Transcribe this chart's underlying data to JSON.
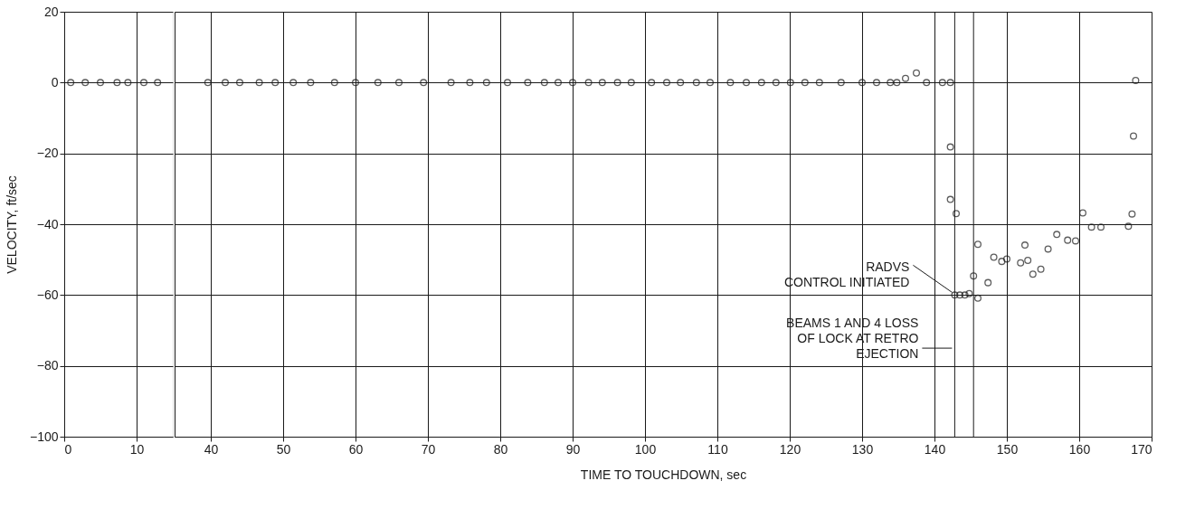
{
  "chart_data": [
    {
      "type": "scatter",
      "ylabel": "VELOCITY, ft/sec",
      "xlim": [
        0,
        15
      ],
      "xticks": [
        0,
        10
      ],
      "ylim": [
        -100,
        20
      ],
      "yticks": [
        -100,
        -80,
        -60,
        -40,
        -20,
        0,
        20
      ],
      "grid": true,
      "marker": "circle",
      "color": "#1a1a1a",
      "x": [
        0.9,
        2.9,
        5.0,
        7.3,
        8.8,
        11.0,
        12.9
      ],
      "values": [
        0,
        0,
        0,
        0,
        0,
        0,
        0
      ]
    },
    {
      "type": "scatter",
      "xlabel": "TIME TO TOUCHDOWN, sec",
      "xlim": [
        35,
        170
      ],
      "xticks": [
        40,
        50,
        60,
        70,
        80,
        90,
        100,
        110,
        120,
        130,
        140,
        150,
        160,
        170
      ],
      "ylim": [
        -100,
        20
      ],
      "yticks": [
        -100,
        -80,
        -60,
        -40,
        -20,
        0,
        20
      ],
      "tick_labels": "x",
      "grid": true,
      "marker": "circle",
      "color": "#1a1a1a",
      "x": [
        39.6,
        42,
        44,
        46.7,
        48.9,
        51.4,
        53.8,
        57.1,
        60,
        63.1,
        66,
        69.4,
        73.2,
        75.8,
        78.1,
        81,
        83.8,
        86.1,
        88,
        90,
        92.2,
        94.1,
        96.2,
        98.1,
        100.9,
        103,
        104.9,
        107.1,
        109,
        111.8,
        114,
        116.1,
        118.1,
        120.1,
        122.1,
        124.1,
        127.1,
        130,
        132,
        133.9,
        134.8,
        136,
        137.5,
        138.9,
        141.1,
        142.2,
        142.2,
        142.2,
        143.0,
        142.8,
        143.5,
        144.2,
        144.8,
        145.4,
        146.0,
        146.0,
        147.4,
        148.2,
        149.3,
        150.0,
        151.9,
        152.5,
        152.9,
        153.6,
        154.7,
        155.7,
        156.9,
        158.4,
        159.5,
        160.5,
        161.7,
        163.0,
        166.8,
        167.3,
        167.5,
        167.8
      ],
      "values": [
        0,
        0,
        0,
        0,
        0,
        0,
        0,
        0,
        0,
        0,
        0,
        0,
        0,
        0,
        0,
        0,
        0,
        0,
        0,
        0,
        0,
        0,
        0,
        0,
        0,
        0,
        0,
        0,
        0,
        0,
        0,
        0,
        0,
        0,
        0,
        0,
        0,
        0,
        0,
        0,
        0,
        1.2,
        2.7,
        0,
        0,
        0,
        -18.2,
        -33.0,
        -37.0,
        -60,
        -60,
        -60,
        -59.6,
        -54.6,
        -60.9,
        -45.7,
        -56.5,
        -49.3,
        -50.5,
        -49.8,
        -50.9,
        -45.9,
        -50.2,
        -54.1,
        -52.7,
        -47.0,
        -42.9,
        -44.5,
        -44.7,
        -36.8,
        -40.8,
        -40.8,
        -40.6,
        -37.1,
        -15.1,
        0.6
      ],
      "ref_lines": [
        {
          "axis": "x",
          "value": 142.8
        },
        {
          "axis": "x",
          "value": 145.4
        }
      ],
      "annotations": [
        {
          "text": "RADVS\nCONTROL INITIATED",
          "x": 142.8,
          "y": -60
        },
        {
          "text": "BEAMS 1 AND 4 LOSS\nOF LOCK AT RETRO\nEJECTION",
          "x": 142.8,
          "y": -75
        }
      ]
    }
  ]
}
